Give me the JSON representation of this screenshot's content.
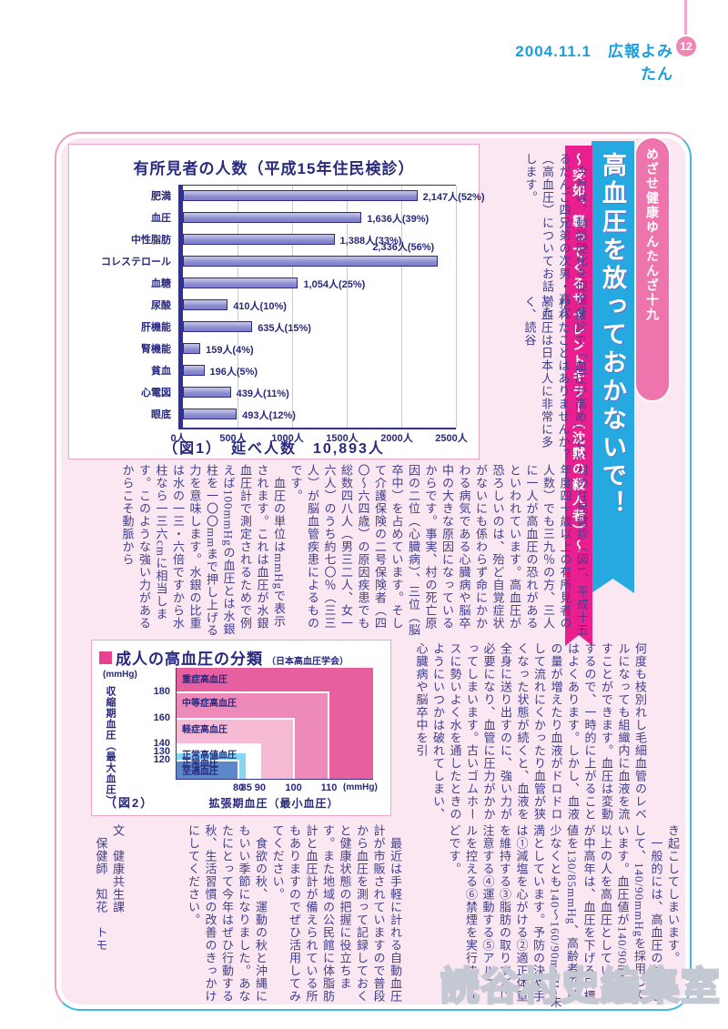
{
  "page_header": {
    "date_title": "2004.11.1　広報よみたん",
    "page_number": "12"
  },
  "series_banner": {
    "label": "めざせ健康ゆんたんざ十九"
  },
  "title_banner": {
    "text": "高血圧を放っておかないで！"
  },
  "subtitle_banner": {
    "text": "〜突如、襲ってくるサイレントキラー（沈黙の殺人者）〜"
  },
  "chart_data": [
    {
      "id": "fig1",
      "type": "bar",
      "title": "有所見者の人数（平成15年住民検診）",
      "categories": [
        "肥満",
        "血圧",
        "中性脂肪",
        "コレステロール",
        "血糖",
        "尿酸",
        "肝機能",
        "腎機能",
        "貧血",
        "心電図",
        "眼底"
      ],
      "values": [
        2147,
        1636,
        1388,
        2336,
        1054,
        410,
        635,
        159,
        196,
        439,
        493
      ],
      "value_labels": [
        "2,147人(52%)",
        "1,636人(39%)",
        "1,388人(33%)",
        "2,336人(56%)",
        "1,054人(25%)",
        "410人(10%)",
        "635人(15%)",
        "159人(4%)",
        "196人(5%)",
        "439人(11%)",
        "493人(12%)"
      ],
      "xlim": [
        0,
        2500
      ],
      "x_ticks": [
        "0人",
        "500人",
        "1000人",
        "1500人",
        "2000人",
        "2500人"
      ],
      "grid": true,
      "label_above_index": 3,
      "caption": "（図1）　延べ人数　10,893人",
      "bar_color": "#8c8cd0",
      "bar_border": "#2c2c86"
    },
    {
      "id": "fig2",
      "type": "area",
      "title": "成人の高血圧の分類",
      "subtitle": "（日本高血圧学会）",
      "ylabel_unit": "(mmHg)",
      "ylabel": "収縮期血圧（最大血圧）",
      "xlabel": "拡張期血圧（最小血圧）",
      "xlabel_unit": "(mmHg)",
      "y_ticks": [
        "180",
        "160",
        "140",
        "130",
        "120"
      ],
      "x_ticks": [
        "80",
        "85",
        "90",
        "100",
        "110"
      ],
      "y_tick_pct": {
        "120": 17,
        "130": 25,
        "140": 32,
        "160": 55,
        "180": 79
      },
      "x_tick_pct": {
        "80": 32,
        "85": 36,
        "90": 43,
        "100": 60,
        "110": 78
      },
      "zones": [
        {
          "label": "重症高血圧",
          "sys": null,
          "dia": null,
          "color": "#e75f9e"
        },
        {
          "label": "中等症高血圧",
          "sys": "180",
          "dia": "110",
          "color": "#ee8ab9"
        },
        {
          "label": "軽症高血圧",
          "sys": "160",
          "dia": "100",
          "color": "#f7bad4"
        },
        {
          "label": "正常高値血圧",
          "sys": "140",
          "dia": "90",
          "color": "#ffffff"
        },
        {
          "label": "正常血圧",
          "sys": "130",
          "dia": "85",
          "color": "#83d7f3"
        },
        {
          "label": "至適血圧",
          "sys": "120",
          "dia": "80",
          "color": "#5c88c9"
        }
      ],
      "caption": "（図2）"
    }
  ],
  "article": {
    "intro": "　今月は、動脈硬化を促進するだんご四兄弟の次男・高次（高血圧）についてお話いたします。",
    "checkup_a": "　健診で「血圧が高め」といわれたことはありませんか？高血圧は日本人に非常に多く、読谷",
    "checkup_b": "村の住民健診（図1、平成十五年度四十歳以上の有所見者の人数）でも三九％の方、三人に一人が高血圧の恐れがあるといわれています。高血圧が恐ろしいのは、殆ど自覚症状がないにも係わらず命にかかわる病気である心臓病や脳卒中の大きな原因になっているからです。事実、村の死亡原因の二位（心臓病）、三位（脳卒中）を占めています。そして介護保険の二号保険者（四〇〜六四歳）の原因疾患でも総数四八人（男三二人、女一六人）のうち約七〇％（三三人）が脳血管疾患によるものです。",
    "bp_unit": "　血圧の単位はmmHgで表示されます。これは血圧が水銀血圧計で測定されるためで例えば100mmHgの血圧とは水銀柱を一〇〇mmまで押し上げる力を意味します。水銀の比重は水の一三・六倍ですから水柱なら一三六cmに相当します。このような強い力があるからこそ動脈から",
    "vessel": "何度も枝別れし毛細血管のレベルになっても組織内に血液を流すことができます。血圧は変動するので、一時的に上がることはよくあります。しかし、血液の量が増えたり血液がドロドロして流れにくかったり血管が狭くなった状態が続くと、血液を全身に送り出すのに、強い力が必要になり、血管に圧力がかかってしまいます。古いゴムホースに勢いよく水を通したときのようにいつかは破れてしまい、心臓病や脳卒中を引",
    "standard_a": "き起こしてしまいます。",
    "standard_b": "　一般的には、高血圧の基準として、140/90mmHgを採用しています。血圧値が140/90mmHg以上の人を高血圧としていますが中高年は、血圧を下げる目標値を130/85mmHg、高齢者では少なくとも140〜160/90mmHg未満としています。予防の決め手は①減塩を心がける②適正体重を維持する③脂肪の取りすぎに注意する④運動する⑤アルコールを控える⑥禁煙を実行するなどです。",
    "monitor": "　最近は手軽に計れる自動血圧計が市販されていますので普段から血圧を測って記録しておくと健康状態の把握に役立ちます。また地域の公民館に体脂肪計と血圧計が備えられている所もありますのでぜひ活用してみてください。",
    "autumn": "　食欲の秋、運動の秋と沖縄にもいい季節になりました。あなたにとって今年はぜひ行動する秋、生活習慣の改善のきっかけにしてください。",
    "sig_a": "文　健康共生課",
    "sig_b": "　保健師　知花　トモ"
  },
  "watermark": {
    "text": "読谷村史編集室"
  }
}
